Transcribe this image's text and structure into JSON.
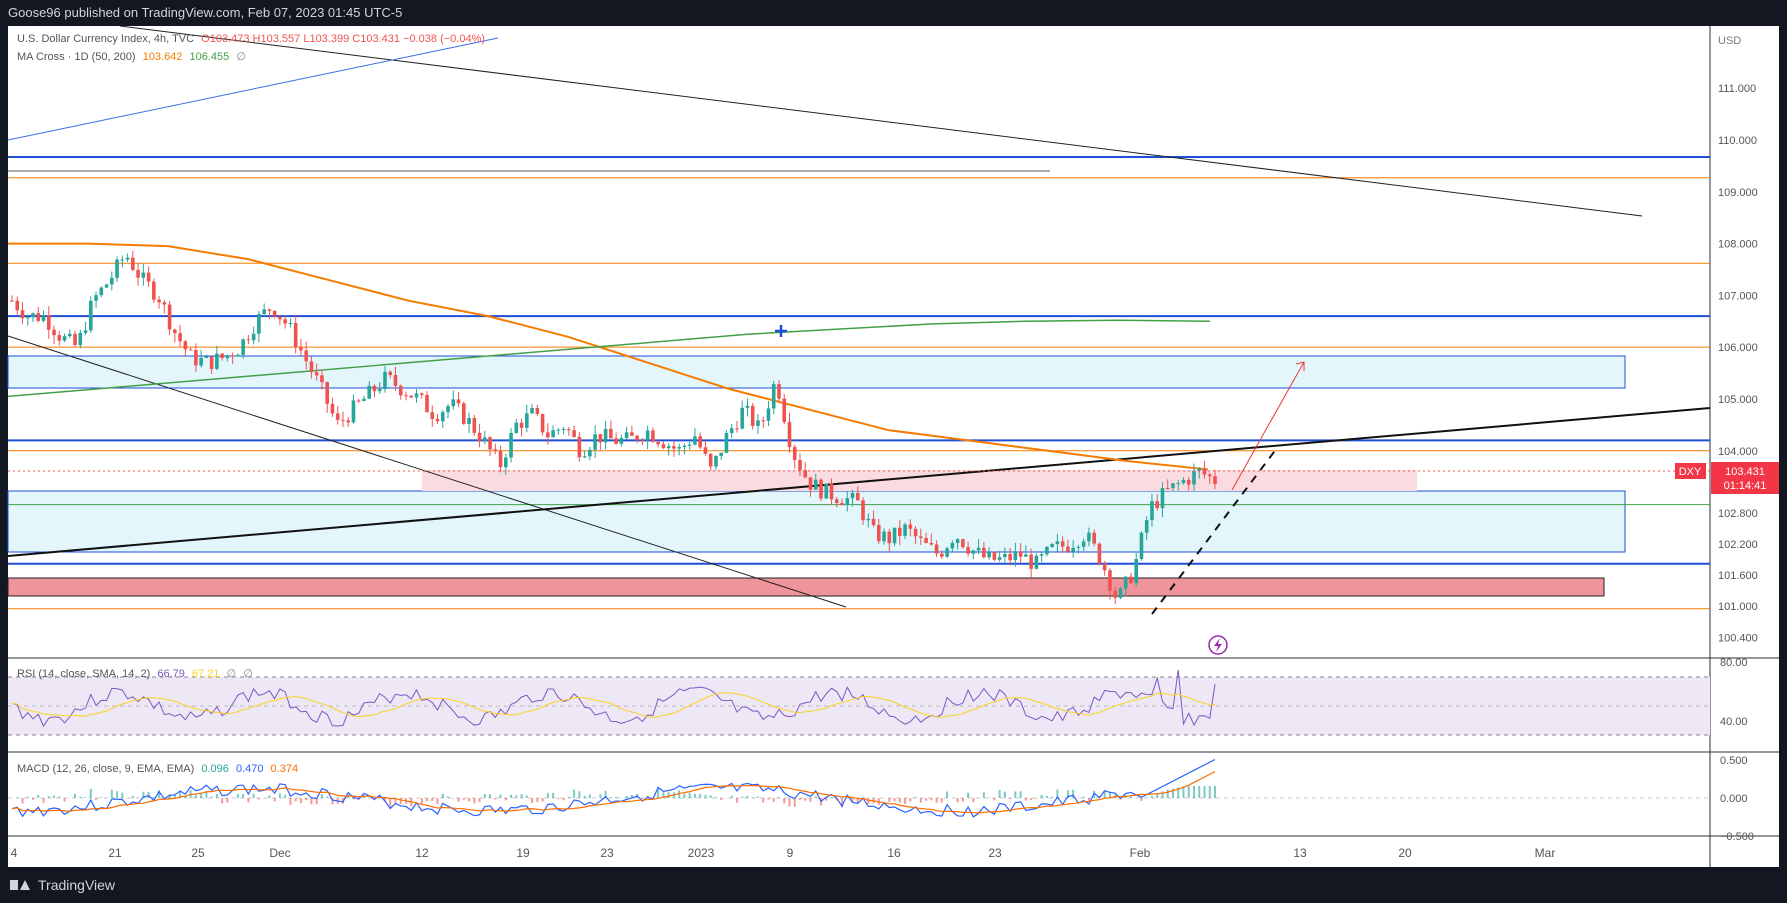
{
  "header": {
    "published": "Goose96 published on TradingView.com, Feb 07, 2023 01:45 UTC-5"
  },
  "footer": {
    "brand": "TradingView"
  },
  "main": {
    "title": "U.S. Dollar Currency Index, 4h, TVC",
    "ohlc": {
      "o": "O103.473",
      "h": "H103.557",
      "l": "L103.399",
      "c": "C103.431",
      "chg": "−0.038 (−0.04%)"
    },
    "ma_cross": {
      "label": "MA Cross · 1D (50, 200)",
      "v1": "103.642",
      "v2": "106.455",
      "v3": "∅"
    },
    "currency": "USD",
    "symbol": "DXY",
    "last_price": "103.431",
    "countdown": "01:14:41"
  },
  "rsi": {
    "label": "RSI (14, close, SMA, 14, 2)",
    "v1": "66.79",
    "v2": "67.21",
    "v3": "∅",
    "v4": "∅",
    "ticks": [
      "80.00",
      "40.00"
    ]
  },
  "macd": {
    "label": "MACD (12, 26, close, 9, EMA, EMA)",
    "hist": "0.096",
    "macd": "0.470",
    "signal": "0.374",
    "ticks": [
      "0.500",
      "0.000",
      "−0.500"
    ]
  },
  "colors": {
    "up": "#26a69a",
    "down": "#ef5350",
    "bg": "#131722",
    "price_badge": "#f23645",
    "ma50": "#f57c00",
    "ma200": "#43a047",
    "hline_blue": "#1e4fd8",
    "hline_orange": "#f57c00"
  },
  "chart_data": {
    "type": "candlestick",
    "title": "U.S. Dollar Currency Index, 4h, TVC",
    "y_ticks": [
      111.0,
      110.0,
      109.0,
      108.0,
      107.0,
      106.0,
      105.0,
      104.0,
      102.8,
      102.2,
      101.6,
      101.0,
      100.4
    ],
    "y_tick_labels": [
      "111.000",
      "110.000",
      "109.000",
      "108.000",
      "107.000",
      "106.000",
      "105.000",
      "104.000",
      "102.800",
      "102.200",
      "101.600",
      "101.000",
      "100.400"
    ],
    "x_ticks": [
      "4",
      "21",
      "25",
      "Dec",
      "12",
      "19",
      "23",
      "2023",
      "9",
      "16",
      "23",
      "Feb",
      "13",
      "20",
      "Mar"
    ],
    "ylim": [
      100.0,
      112.2
    ],
    "hlines": [
      {
        "y": 109.67,
        "color": "blue"
      },
      {
        "y": 109.27,
        "color": "orange"
      },
      {
        "y": 109.4,
        "color": "gray",
        "partial": true
      },
      {
        "y": 107.62,
        "color": "orange"
      },
      {
        "y": 106.6,
        "color": "blue"
      },
      {
        "y": 106.0,
        "color": "orange"
      },
      {
        "y": 104.2,
        "color": "blue"
      },
      {
        "y": 104.0,
        "color": "orange"
      },
      {
        "y": 102.96,
        "color": "green"
      },
      {
        "y": 101.82,
        "color": "blue"
      },
      {
        "y": 100.95,
        "color": "orange"
      }
    ],
    "zones": [
      {
        "name": "supply-zone",
        "y_top": 105.65,
        "y_bottom": 105.06
      },
      {
        "name": "support-zone",
        "y_top": 102.98,
        "y_bottom": 101.82
      },
      {
        "name": "demand-zone",
        "y_top": 101.28,
        "y_bottom": 100.96
      },
      {
        "name": "pink-zone",
        "y_top": 103.41,
        "y_bottom": 102.99
      }
    ],
    "close_path": [
      106.9,
      106.6,
      106.6,
      106.2,
      106.0,
      106.9,
      107.3,
      107.8,
      107.3,
      107.0,
      106.3,
      105.8,
      105.7,
      105.8,
      106.0,
      106.5,
      106.8,
      106.4,
      105.8,
      105.2,
      104.5,
      104.8,
      105.1,
      105.4,
      105.2,
      105.0,
      104.7,
      104.9,
      104.6,
      104.2,
      103.7,
      104.5,
      104.7,
      104.3,
      104.5,
      104.0,
      104.3,
      104.2,
      104.2,
      104.4,
      104.2,
      104.0,
      104.3,
      103.6,
      104.3,
      104.8,
      104.4,
      105.4,
      104.0,
      103.4,
      103.2,
      103.1,
      103.0,
      102.4,
      102.3,
      102.5,
      102.2,
      102.0,
      102.4,
      102.1,
      101.9,
      101.9,
      102.0,
      101.8,
      102.1,
      102.2,
      102.4,
      101.9,
      101.1,
      101.7,
      102.9,
      103.2,
      103.4,
      103.6,
      103.43
    ],
    "ma50_path": [
      108.0,
      108.0,
      107.95,
      107.7,
      107.3,
      106.9,
      106.6,
      106.2,
      105.7,
      105.2,
      104.8,
      104.4,
      104.2,
      104.0,
      103.8,
      103.64
    ],
    "ma200_path": [
      105.05,
      105.2,
      105.35,
      105.5,
      105.65,
      105.8,
      105.95,
      106.1,
      106.25,
      106.35,
      106.45,
      106.5,
      106.52,
      106.5
    ],
    "annotations": [
      "target-arrow",
      "dashed-trendline",
      "cross-marker"
    ]
  }
}
